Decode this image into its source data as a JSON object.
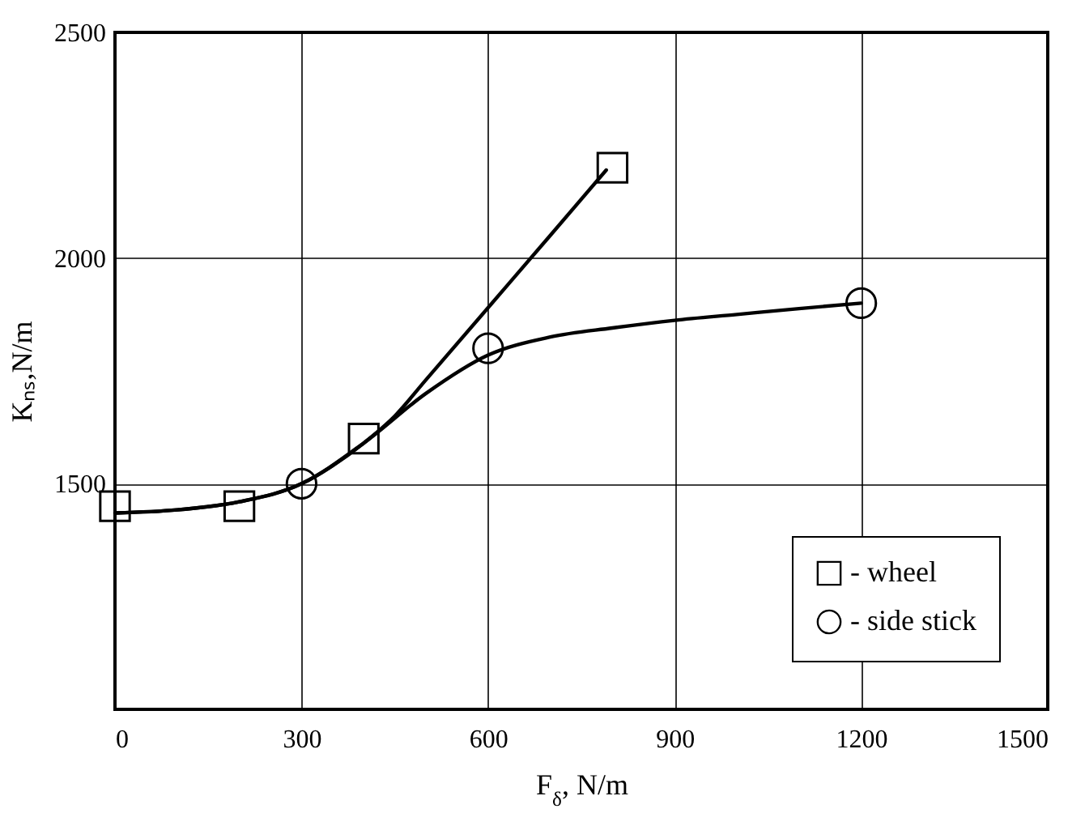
{
  "chart_data": {
    "type": "scatter",
    "xlabel": "F$_{δ}$, N/m",
    "ylabel": "Kₙₛ,N/m",
    "xlim": [
      0,
      1500
    ],
    "xticks": [
      0,
      300,
      600,
      900,
      1200,
      1500
    ],
    "ylim": [
      1000,
      2500
    ],
    "yticks": [
      {
        "value": 1000,
        "label": null
      },
      1500,
      2000,
      2500
    ],
    "grid": true,
    "legend": "bottom right",
    "series": [
      {
        "name": "- wheel",
        "color": "#000000",
        "marker": "square",
        "x": [
          0,
          200,
          400,
          800
        ],
        "values": [
          1450,
          1450,
          1600,
          2200
        ]
      },
      {
        "name": "- side stick",
        "color": "#000000",
        "marker": "circle",
        "x": [
          300,
          600,
          1200
        ],
        "values": [
          1500,
          1800,
          1900
        ]
      },
      {
        "type": "line",
        "color": "#000000",
        "marker": "none",
        "line_style": "solid",
        "x": [
          0,
          100,
          200,
          300,
          350,
          400,
          450,
          500,
          600,
          700,
          790
        ],
        "values": [
          1435,
          1442,
          1460,
          1500,
          1540,
          1590,
          1650,
          1730,
          1890,
          2050,
          2195
        ]
      },
      {
        "type": "line",
        "color": "#000000",
        "marker": "none",
        "line_style": "solid",
        "x": [
          0,
          100,
          200,
          300,
          400,
          500,
          600,
          700,
          800,
          900,
          1000,
          1100,
          1200
        ],
        "values": [
          1435,
          1442,
          1460,
          1500,
          1590,
          1700,
          1785,
          1825,
          1845,
          1862,
          1875,
          1888,
          1900
        ]
      }
    ]
  }
}
